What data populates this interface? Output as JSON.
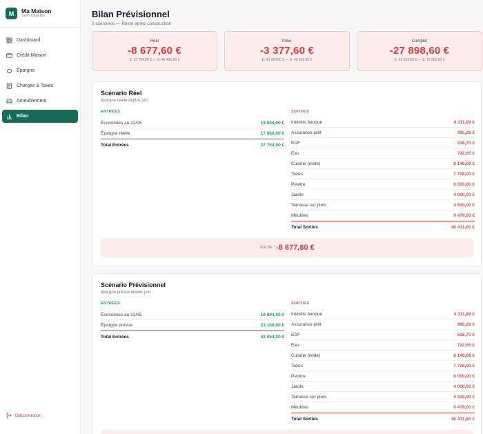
{
  "brand": {
    "logo": "M",
    "name": "Ma Maison",
    "subtitle": "Suivi Chantier"
  },
  "nav": [
    {
      "label": "Dashboard",
      "icon": "grid-icon",
      "active": false
    },
    {
      "label": "Crédit Maison",
      "icon": "credit-card-icon",
      "active": false
    },
    {
      "label": "Épargne",
      "icon": "piggy-bank-icon",
      "active": false
    },
    {
      "label": "Charges & Taxes",
      "icon": "receipt-icon",
      "active": false
    },
    {
      "label": "Ameublement",
      "icon": "sofa-icon",
      "active": false
    },
    {
      "label": "Bilan",
      "icon": "bar-chart-icon",
      "active": true
    }
  ],
  "logout": {
    "label": "Déconnexion",
    "icon": "logout-icon"
  },
  "header": {
    "title": "Bilan Prévisionnel",
    "subtitle": "3 scénarios — Reste après construction"
  },
  "summaries": [
    {
      "label": "Réel",
      "value": "-8 677,60 €",
      "detail": "E: 37 754,00 € — S: 46 431,60 €"
    },
    {
      "label": "Prévi.",
      "value": "-3 377,60 €",
      "detail": "E: 43 054,00 € — S: 46 431,60 €"
    },
    {
      "label": "Complet",
      "value": "-27 898,60 €",
      "detail": "E: 43 054,00 € — S: 70 952,60 €"
    }
  ],
  "scenarios": [
    {
      "title": "Scénario Réel",
      "subtitle": "épargne réelle depuis juin",
      "entries_label": "ENTRÉES",
      "exits_label": "SORTIES",
      "entries": [
        {
          "label": "Économies au 22/05",
          "amount": "19 894,00 €"
        },
        {
          "label": "Épargne réelle",
          "amount": "17 860,00 €"
        }
      ],
      "entries_total": {
        "label": "Total Entrées",
        "amount": "37 754,00 €"
      },
      "exits": [
        {
          "label": "Intérêts banque",
          "amount": "4 311,89 €"
        },
        {
          "label": "Assurance prêt",
          "amount": "995,28 €"
        },
        {
          "label": "EDF",
          "amount": "536,70 €"
        },
        {
          "label": "Eau",
          "amount": "732,65 €"
        },
        {
          "label": "Cuisine (reste)",
          "amount": "8 148,08 €"
        },
        {
          "label": "Taxes",
          "amount": "7 728,00 €"
        },
        {
          "label": "Peintre",
          "amount": "6 000,00 €"
        },
        {
          "label": "Jardin",
          "amount": "4 000,00 €"
        },
        {
          "label": "Terrasse sur plots",
          "amount": "4 500,00 €"
        },
        {
          "label": "Meubles",
          "amount": "9 479,00 €"
        }
      ],
      "exits_total": {
        "label": "Total Sorties",
        "amount": "46 431,60 €"
      },
      "solde_label": "SOLDE :",
      "solde_value": "-8 677,60 €"
    },
    {
      "title": "Scénario Prévisionnel",
      "subtitle": "épargne prévue depuis juin",
      "entries_label": "ENTRÉES",
      "exits_label": "SORTIES",
      "entries": [
        {
          "label": "Économies au 22/05",
          "amount": "19 894,00 €"
        },
        {
          "label": "Épargne prévue",
          "amount": "23 160,00 €"
        }
      ],
      "entries_total": {
        "label": "Total Entrées",
        "amount": "43 054,00 €"
      },
      "exits": [
        {
          "label": "Intérêts banque",
          "amount": "4 311,89 €"
        },
        {
          "label": "Assurance prêt",
          "amount": "995,28 €"
        },
        {
          "label": "EDF",
          "amount": "536,70 €"
        },
        {
          "label": "Eau",
          "amount": "732,65 €"
        },
        {
          "label": "Cuisine (reste)",
          "amount": "8 148,08 €"
        },
        {
          "label": "Taxes",
          "amount": "7 728,00 €"
        },
        {
          "label": "Peintre",
          "amount": "6 000,00 €"
        },
        {
          "label": "Jardin",
          "amount": "4 000,00 €"
        },
        {
          "label": "Terrasse sur plots",
          "amount": "4 500,00 €"
        },
        {
          "label": "Meubles",
          "amount": "9 479,00 €"
        }
      ],
      "exits_total": {
        "label": "Total Sorties",
        "amount": "46 431,60 €"
      }
    }
  ]
}
